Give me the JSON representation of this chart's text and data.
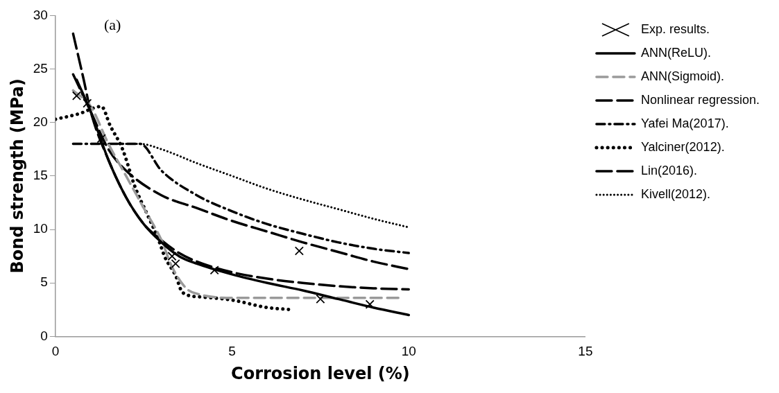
{
  "chart_data": {
    "type": "line",
    "xlabel": "Corrosion level (%)",
    "ylabel": "Bond strength (MPa)",
    "annotations": [
      "(a)"
    ],
    "xlim": [
      0,
      15
    ],
    "xticks": [
      0,
      5,
      10,
      15
    ],
    "ylim": [
      0,
      30
    ],
    "yticks": [
      0,
      5,
      10,
      15,
      20,
      25,
      30
    ],
    "grid": false,
    "legend": "right",
    "series": [
      {
        "name": "Exp. results.",
        "type": "scatter",
        "marker": "cross",
        "color": "#000000",
        "x": [
          0.6,
          0.9,
          1.3,
          3.3,
          3.4,
          4.5,
          6.9,
          7.5,
          8.9
        ],
        "values": [
          22.5,
          21.8,
          18.5,
          7.5,
          6.8,
          6.2,
          8.0,
          3.5,
          3.0
        ]
      },
      {
        "name": "ANN(ReLU).",
        "line_style": "solid",
        "color": "#000000",
        "x": [
          0.6,
          1,
          1.5,
          2,
          2.5,
          3,
          3.5,
          4,
          5,
          6,
          7,
          8,
          9,
          10
        ],
        "values": [
          24,
          21,
          16.5,
          13,
          10.5,
          8.8,
          7.5,
          6.8,
          5.8,
          5,
          4.3,
          3.5,
          2.7,
          2
        ]
      },
      {
        "name": "ANN(Sigmoid).",
        "line_style": "dashed",
        "color": "#9a9a9a",
        "x": [
          0.5,
          1,
          1.5,
          2,
          2.5,
          3,
          3.3,
          3.7,
          4,
          5,
          6,
          7,
          8,
          9,
          9.8
        ],
        "values": [
          23,
          21.5,
          18,
          15,
          12,
          9,
          6.5,
          4.5,
          4,
          3.6,
          3.6,
          3.6,
          3.6,
          3.6,
          3.6
        ]
      },
      {
        "name": "Nonlinear regression.",
        "line_style": "dashed",
        "color": "#000000",
        "x": [
          0.5,
          0.8,
          1,
          1.5,
          2,
          2.5,
          3,
          3.5,
          4,
          5,
          6,
          7,
          8,
          9,
          10
        ],
        "values": [
          28.3,
          24,
          21,
          16.5,
          13,
          10.5,
          9,
          7.8,
          7,
          6,
          5.4,
          5,
          4.7,
          4.5,
          4.4
        ]
      },
      {
        "name": "Yafei Ma(2017).",
        "line_style": "dashed",
        "color": "#000000",
        "x": [
          0.5,
          2.4,
          3,
          4,
          5,
          6,
          7,
          8,
          9,
          10
        ],
        "values": [
          18,
          18,
          15.5,
          13.2,
          11.7,
          10.5,
          9.6,
          8.8,
          8.2,
          7.8
        ]
      },
      {
        "name": "Yalciner(2012).",
        "line_style": "dotted",
        "color": "#000000",
        "x": [
          0,
          0.65,
          1.3,
          1.55,
          1.9,
          2.25,
          2.6,
          2.9,
          3.1,
          3.4,
          3.6,
          4.1,
          5,
          6,
          6.7
        ],
        "values": [
          20.3,
          20.8,
          21.5,
          19.7,
          17.5,
          14,
          11.4,
          9.2,
          7.4,
          5.7,
          4.1,
          3.7,
          3.4,
          2.7,
          2.5
        ]
      },
      {
        "name": "Lin(2016).",
        "line_style": "dashed",
        "color": "#000000",
        "x": [
          0.5,
          1,
          1.5,
          2,
          3,
          4,
          5,
          6,
          7,
          8,
          9,
          10
        ],
        "values": [
          24.5,
          21,
          17.5,
          15.5,
          13.2,
          12,
          10.8,
          9.8,
          8.8,
          7.9,
          7,
          6.3
        ]
      },
      {
        "name": "Kivell(2012).",
        "line_style": "dotted",
        "color": "#000000",
        "x": [
          1.5,
          2.4,
          3,
          4,
          5,
          6,
          7,
          8,
          9,
          10
        ],
        "values": [
          18,
          18,
          17.5,
          16.2,
          15,
          13.8,
          12.8,
          11.9,
          11,
          10.2
        ]
      }
    ]
  }
}
